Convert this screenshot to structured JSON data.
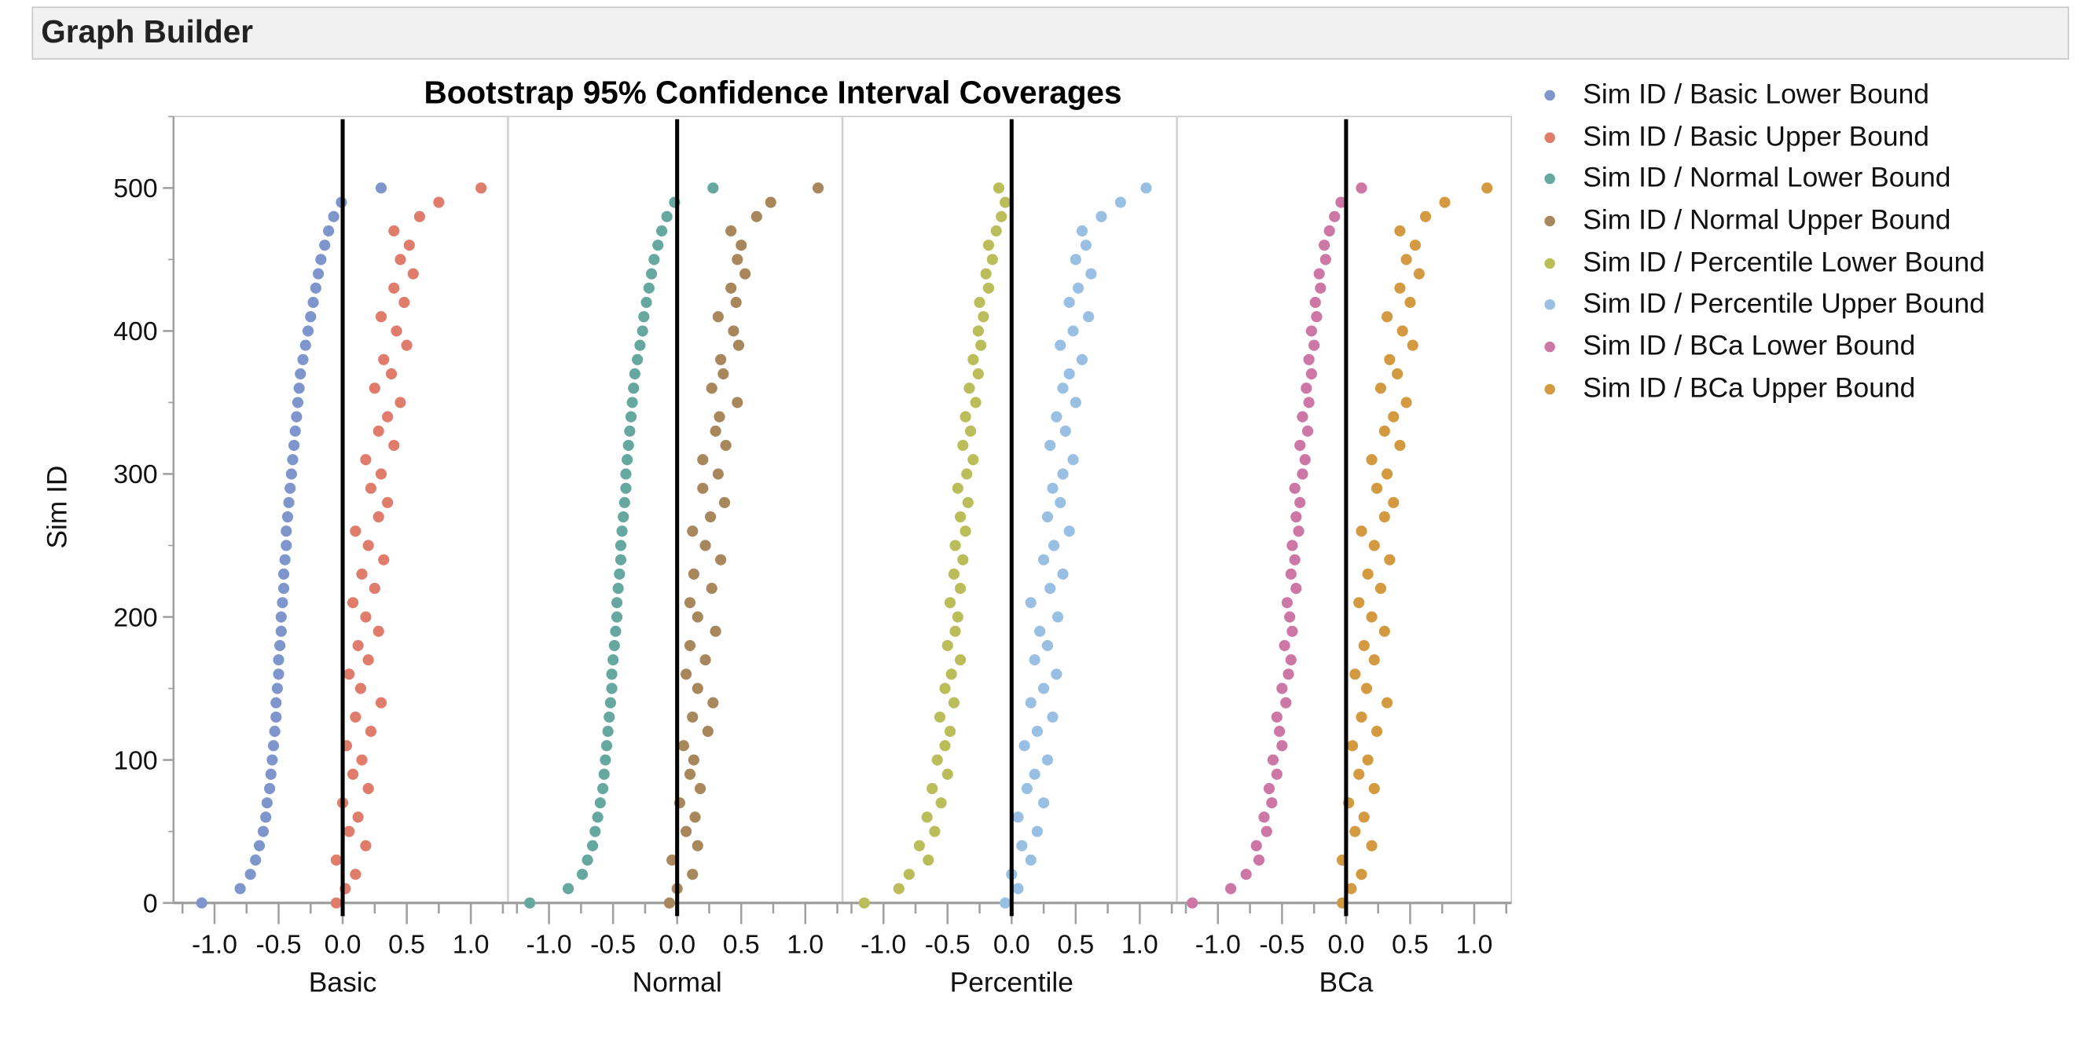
{
  "header": {
    "title": "Graph Builder"
  },
  "chart_data": {
    "type": "scatter",
    "title": "Bootstrap 95% Confidence Interval Coverages",
    "ylabel": "Sim ID",
    "ylim": [
      0,
      550
    ],
    "yticks": [
      "0",
      "100",
      "200",
      "300",
      "400",
      "500"
    ],
    "xlim": [
      -1.32,
      1.29
    ],
    "xticks": [
      "-1.0",
      "-0.5",
      "0.0",
      "0.5",
      "1.0"
    ],
    "reference_line_x": 0,
    "grid": false,
    "legend_position": "right",
    "panels": [
      "Basic",
      "Normal",
      "Percentile",
      "BCa"
    ],
    "sim_ids_sampled": "0 to 500 step 10",
    "series": [
      {
        "name": "Sim ID / Basic Lower Bound",
        "panel": 0,
        "color": "#7f96cc",
        "values": [
          -1.1,
          -0.8,
          -0.72,
          -0.68,
          -0.65,
          -0.62,
          -0.6,
          -0.59,
          -0.57,
          -0.56,
          -0.55,
          -0.54,
          -0.53,
          -0.52,
          -0.52,
          -0.51,
          -0.5,
          -0.5,
          -0.49,
          -0.48,
          -0.48,
          -0.47,
          -0.46,
          -0.46,
          -0.45,
          -0.44,
          -0.44,
          -0.43,
          -0.42,
          -0.41,
          -0.4,
          -0.39,
          -0.38,
          -0.37,
          -0.36,
          -0.35,
          -0.34,
          -0.33,
          -0.31,
          -0.29,
          -0.27,
          -0.25,
          -0.23,
          -0.21,
          -0.19,
          -0.17,
          -0.14,
          -0.11,
          -0.07,
          -0.01,
          0.3
        ]
      },
      {
        "name": "Sim ID / Basic Upper Bound",
        "panel": 0,
        "color": "#e07c6c",
        "values": [
          -0.05,
          0.02,
          0.1,
          -0.05,
          0.18,
          0.05,
          0.12,
          0.0,
          0.2,
          0.08,
          0.15,
          0.03,
          0.22,
          0.1,
          0.3,
          0.14,
          0.05,
          0.2,
          0.12,
          0.28,
          0.18,
          0.08,
          0.25,
          0.15,
          0.32,
          0.2,
          0.1,
          0.28,
          0.35,
          0.22,
          0.3,
          0.18,
          0.4,
          0.28,
          0.35,
          0.45,
          0.25,
          0.38,
          0.32,
          0.5,
          0.42,
          0.3,
          0.48,
          0.4,
          0.55,
          0.45,
          0.52,
          0.4,
          0.6,
          0.75,
          1.08
        ]
      },
      {
        "name": "Sim ID / Normal Lower Bound",
        "panel": 1,
        "color": "#66a8a0",
        "values": [
          -1.15,
          -0.85,
          -0.74,
          -0.7,
          -0.66,
          -0.64,
          -0.62,
          -0.6,
          -0.58,
          -0.57,
          -0.56,
          -0.55,
          -0.54,
          -0.53,
          -0.52,
          -0.51,
          -0.51,
          -0.5,
          -0.49,
          -0.48,
          -0.47,
          -0.47,
          -0.46,
          -0.45,
          -0.44,
          -0.44,
          -0.43,
          -0.42,
          -0.41,
          -0.4,
          -0.4,
          -0.39,
          -0.38,
          -0.37,
          -0.36,
          -0.35,
          -0.34,
          -0.33,
          -0.31,
          -0.29,
          -0.27,
          -0.26,
          -0.24,
          -0.22,
          -0.2,
          -0.18,
          -0.15,
          -0.12,
          -0.08,
          -0.02,
          0.28
        ]
      },
      {
        "name": "Sim ID / Normal Upper Bound",
        "panel": 1,
        "color": "#a8875c",
        "values": [
          -0.06,
          0.0,
          0.12,
          -0.04,
          0.16,
          0.07,
          0.14,
          0.02,
          0.18,
          0.1,
          0.13,
          0.05,
          0.24,
          0.12,
          0.28,
          0.16,
          0.07,
          0.22,
          0.1,
          0.3,
          0.16,
          0.1,
          0.27,
          0.13,
          0.34,
          0.22,
          0.12,
          0.26,
          0.37,
          0.2,
          0.32,
          0.2,
          0.38,
          0.3,
          0.33,
          0.47,
          0.27,
          0.36,
          0.34,
          0.48,
          0.44,
          0.32,
          0.46,
          0.42,
          0.53,
          0.47,
          0.5,
          0.42,
          0.62,
          0.73,
          1.1
        ]
      },
      {
        "name": "Sim ID / Percentile Lower Bound",
        "panel": 2,
        "color": "#bbbd5a",
        "values": [
          -1.15,
          -0.88,
          -0.8,
          -0.65,
          -0.72,
          -0.6,
          -0.66,
          -0.55,
          -0.62,
          -0.5,
          -0.58,
          -0.52,
          -0.48,
          -0.56,
          -0.45,
          -0.52,
          -0.47,
          -0.4,
          -0.5,
          -0.44,
          -0.42,
          -0.48,
          -0.4,
          -0.45,
          -0.38,
          -0.44,
          -0.36,
          -0.4,
          -0.34,
          -0.42,
          -0.35,
          -0.3,
          -0.38,
          -0.32,
          -0.36,
          -0.28,
          -0.33,
          -0.26,
          -0.3,
          -0.24,
          -0.26,
          -0.22,
          -0.25,
          -0.18,
          -0.2,
          -0.15,
          -0.18,
          -0.12,
          -0.08,
          -0.05,
          -0.1
        ]
      },
      {
        "name": "Sim ID / Percentile Upper Bound",
        "panel": 2,
        "color": "#99c0e2",
        "values": [
          -0.05,
          0.05,
          0.0,
          0.15,
          0.08,
          0.2,
          0.05,
          0.25,
          0.12,
          0.18,
          0.28,
          0.1,
          0.2,
          0.32,
          0.15,
          0.25,
          0.35,
          0.18,
          0.28,
          0.22,
          0.36,
          0.15,
          0.3,
          0.4,
          0.25,
          0.33,
          0.45,
          0.28,
          0.38,
          0.32,
          0.4,
          0.48,
          0.3,
          0.42,
          0.35,
          0.5,
          0.4,
          0.45,
          0.55,
          0.38,
          0.48,
          0.6,
          0.45,
          0.52,
          0.62,
          0.5,
          0.58,
          0.55,
          0.7,
          0.85,
          1.05
        ]
      },
      {
        "name": "Sim ID / BCa Lower Bound",
        "panel": 3,
        "color": "#cc77a5",
        "values": [
          -1.2,
          -0.9,
          -0.78,
          -0.68,
          -0.7,
          -0.62,
          -0.64,
          -0.58,
          -0.6,
          -0.54,
          -0.57,
          -0.5,
          -0.52,
          -0.54,
          -0.47,
          -0.5,
          -0.45,
          -0.43,
          -0.48,
          -0.42,
          -0.44,
          -0.46,
          -0.39,
          -0.43,
          -0.4,
          -0.42,
          -0.37,
          -0.39,
          -0.36,
          -0.4,
          -0.34,
          -0.32,
          -0.36,
          -0.3,
          -0.34,
          -0.29,
          -0.31,
          -0.27,
          -0.29,
          -0.25,
          -0.27,
          -0.23,
          -0.24,
          -0.2,
          -0.21,
          -0.16,
          -0.17,
          -0.13,
          -0.09,
          -0.04,
          0.12
        ]
      },
      {
        "name": "Sim ID / BCa Upper Bound",
        "panel": 3,
        "color": "#d49a42",
        "values": [
          -0.03,
          0.04,
          0.12,
          -0.03,
          0.2,
          0.07,
          0.14,
          0.02,
          0.22,
          0.1,
          0.17,
          0.05,
          0.24,
          0.12,
          0.32,
          0.16,
          0.07,
          0.22,
          0.14,
          0.3,
          0.2,
          0.1,
          0.27,
          0.17,
          0.34,
          0.22,
          0.12,
          0.3,
          0.37,
          0.24,
          0.32,
          0.2,
          0.42,
          0.3,
          0.37,
          0.47,
          0.27,
          0.4,
          0.34,
          0.52,
          0.44,
          0.32,
          0.5,
          0.42,
          0.57,
          0.47,
          0.54,
          0.42,
          0.62,
          0.77,
          1.1
        ]
      }
    ]
  }
}
